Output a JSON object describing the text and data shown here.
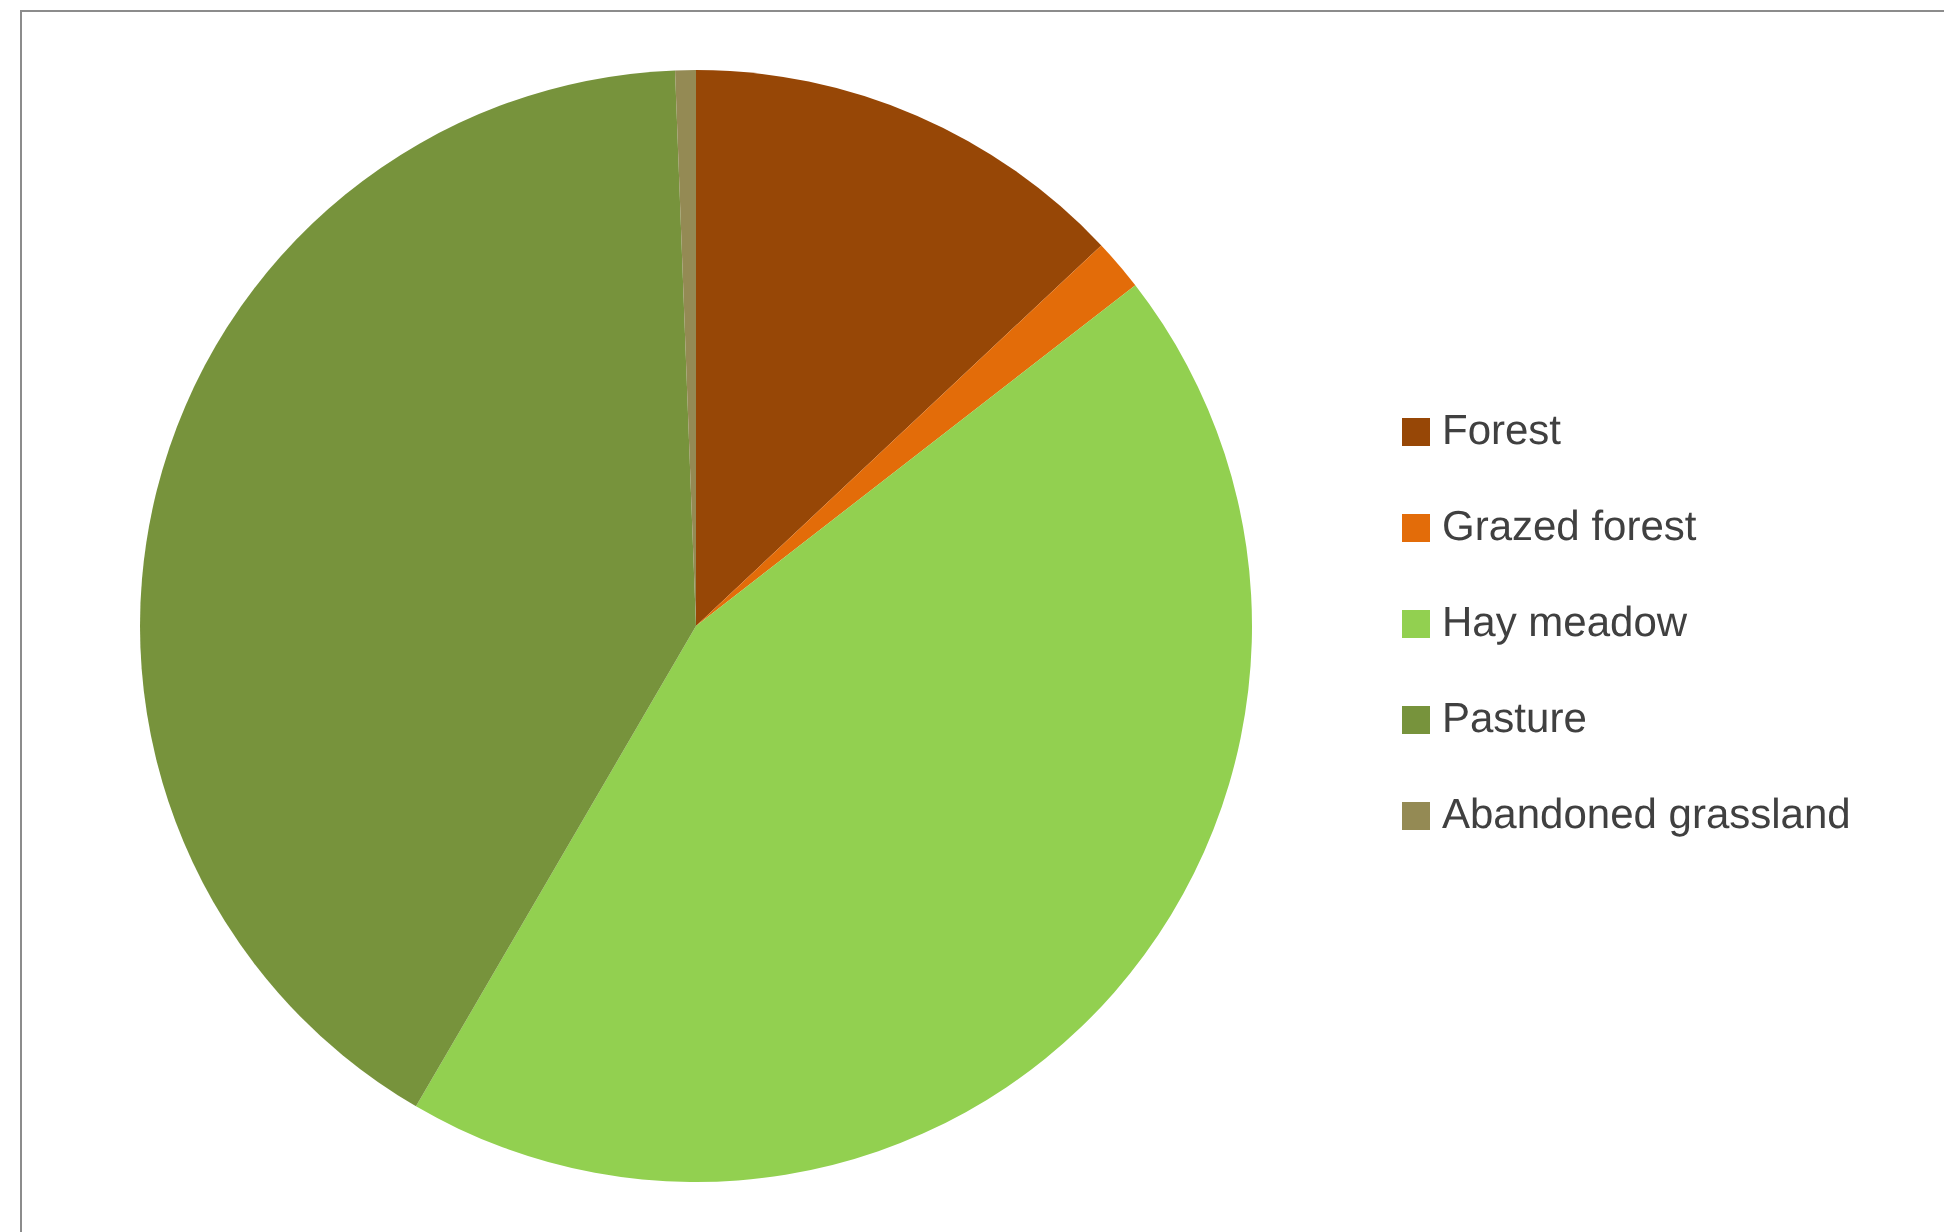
{
  "chart_data": {
    "type": "pie",
    "categories": [
      "Forest",
      "Grazed forest",
      "Hay meadow",
      "Pasture",
      "Abandoned grassland"
    ],
    "values": [
      13.0,
      1.5,
      43.9,
      41.0,
      0.6
    ],
    "colors": [
      "#974706",
      "#e36c09",
      "#92d050",
      "#77933c",
      "#948a54"
    ],
    "legend": "right"
  }
}
